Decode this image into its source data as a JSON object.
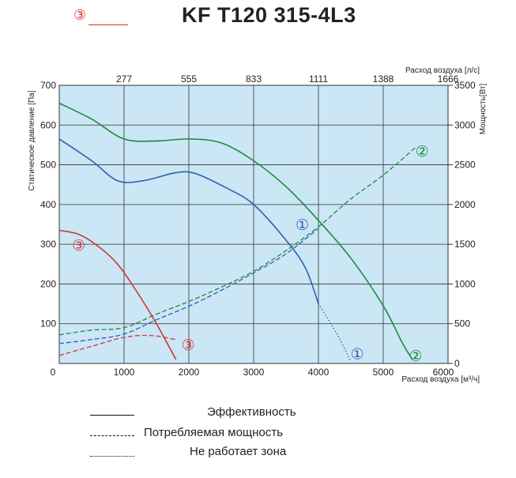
{
  "title": "KF T120 315-4L3",
  "title_mark": "③",
  "legend": [
    {
      "style": "solid",
      "label": "Эффективность"
    },
    {
      "style": "dashed",
      "label": "Потребляемая мощность"
    },
    {
      "style": "dotted",
      "label": "Не работает зона"
    }
  ],
  "chart_data": {
    "type": "line",
    "x_axis": {
      "label": "Расход воздуха [м³/ч]",
      "range": [
        0,
        6000
      ],
      "ticks": [
        0,
        1000,
        2000,
        3000,
        4000,
        5000,
        6000
      ]
    },
    "x2_axis": {
      "label": "Расход воздуха [л/с]",
      "ticks": [
        "277",
        "555",
        "833",
        "1111",
        "1388",
        "1666"
      ]
    },
    "y_axis": {
      "label": "Статическое давление [Па]",
      "range": [
        0,
        700
      ],
      "ticks": [
        100,
        200,
        300,
        400,
        500,
        600,
        700
      ]
    },
    "y2_axis": {
      "label": "Мощность[Вт]",
      "range": [
        0,
        3500
      ],
      "ticks": [
        0,
        500,
        1000,
        1500,
        2000,
        2500,
        3000,
        3500
      ]
    },
    "grid": true,
    "background": "#cbe6f5",
    "colors": {
      "1": "#2f5fb0",
      "2": "#1e8a3c",
      "3": "#cc3a3a"
    },
    "series": [
      {
        "name": "①",
        "kind": "pressure",
        "curve": "1",
        "style": "solid",
        "points": [
          [
            0,
            565
          ],
          [
            500,
            510
          ],
          [
            900,
            460
          ],
          [
            1300,
            460
          ],
          [
            1800,
            480
          ],
          [
            2100,
            478
          ],
          [
            2600,
            440
          ],
          [
            3000,
            400
          ],
          [
            3500,
            310
          ],
          [
            3800,
            240
          ],
          [
            4000,
            150
          ]
        ]
      },
      {
        "name": "①",
        "kind": "pressure-outside",
        "curve": "1",
        "style": "dotted",
        "points": [
          [
            4000,
            150
          ],
          [
            4300,
            70
          ],
          [
            4500,
            5
          ]
        ]
      },
      {
        "name": "②",
        "kind": "pressure",
        "curve": "2",
        "style": "solid",
        "points": [
          [
            0,
            655
          ],
          [
            500,
            615
          ],
          [
            1000,
            565
          ],
          [
            1500,
            560
          ],
          [
            2000,
            565
          ],
          [
            2500,
            555
          ],
          [
            3000,
            510
          ],
          [
            3500,
            445
          ],
          [
            4000,
            360
          ],
          [
            4500,
            265
          ],
          [
            5000,
            145
          ],
          [
            5300,
            50
          ],
          [
            5450,
            10
          ]
        ]
      },
      {
        "name": "③",
        "kind": "pressure",
        "curve": "3",
        "style": "solid",
        "points": [
          [
            0,
            335
          ],
          [
            300,
            325
          ],
          [
            600,
            295
          ],
          [
            900,
            250
          ],
          [
            1200,
            180
          ],
          [
            1500,
            100
          ],
          [
            1800,
            10
          ]
        ]
      },
      {
        "name": "①",
        "kind": "power",
        "curve": "1",
        "style": "dashed",
        "points": [
          [
            0,
            250
          ],
          [
            500,
            300
          ],
          [
            1000,
            370
          ],
          [
            1500,
            550
          ],
          [
            2000,
            720
          ],
          [
            2500,
            920
          ],
          [
            3000,
            1140
          ],
          [
            3500,
            1380
          ],
          [
            4000,
            1700
          ]
        ]
      },
      {
        "name": "②",
        "kind": "power",
        "curve": "2",
        "style": "dashed",
        "points": [
          [
            0,
            360
          ],
          [
            500,
            420
          ],
          [
            1000,
            450
          ],
          [
            1500,
            620
          ],
          [
            2000,
            780
          ],
          [
            2500,
            960
          ],
          [
            3000,
            1160
          ],
          [
            3500,
            1420
          ],
          [
            4000,
            1720
          ],
          [
            4500,
            2070
          ],
          [
            5000,
            2370
          ],
          [
            5500,
            2720
          ]
        ]
      },
      {
        "name": "③",
        "kind": "power",
        "curve": "3",
        "style": "dashed",
        "points": [
          [
            0,
            100
          ],
          [
            300,
            170
          ],
          [
            600,
            240
          ],
          [
            900,
            310
          ],
          [
            1200,
            350
          ],
          [
            1500,
            345
          ],
          [
            1800,
            300
          ]
        ]
      }
    ],
    "annotations": [
      {
        "text": "①",
        "curve": "1",
        "x": 3750,
        "y": 350
      },
      {
        "text": "①",
        "curve": "1",
        "x": 4600,
        "y": 25
      },
      {
        "text": "②",
        "curve": "2",
        "x": 5500,
        "y": 20
      },
      {
        "text": "②",
        "curve": "2",
        "x": 5600,
        "y": 535
      },
      {
        "text": "③",
        "curve": "3",
        "x": 300,
        "y": 298
      },
      {
        "text": "③",
        "curve": "3",
        "x": 1990,
        "y": 48
      }
    ]
  }
}
